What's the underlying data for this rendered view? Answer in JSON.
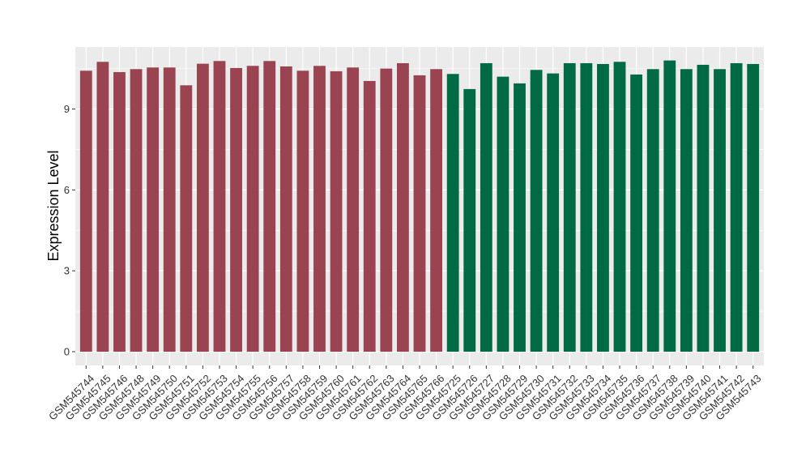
{
  "chart_data": {
    "type": "bar",
    "title": "",
    "xlabel": "",
    "ylabel": "Expression Level",
    "ylim": [
      0,
      11.3
    ],
    "yticks": [
      0,
      3,
      6,
      9
    ],
    "grid": true,
    "legend": "none",
    "panel_background": "#ebebeb",
    "gridline_color": "#ffffff",
    "categories": [
      "GSM545744",
      "GSM545745",
      "GSM545746",
      "GSM545748",
      "GSM545749",
      "GSM545750",
      "GSM545751",
      "GSM545752",
      "GSM545753",
      "GSM545754",
      "GSM545755",
      "GSM545756",
      "GSM545757",
      "GSM545758",
      "GSM545759",
      "GSM545760",
      "GSM545761",
      "GSM545762",
      "GSM545763",
      "GSM545764",
      "GSM545765",
      "GSM545766",
      "GSM545725",
      "GSM545726",
      "GSM545727",
      "GSM545728",
      "GSM545729",
      "GSM545730",
      "GSM545731",
      "GSM545732",
      "GSM545733",
      "GSM545734",
      "GSM545735",
      "GSM545736",
      "GSM545737",
      "GSM545738",
      "GSM545739",
      "GSM545740",
      "GSM545741",
      "GSM545742",
      "GSM545743"
    ],
    "values": [
      10.42,
      10.75,
      10.37,
      10.48,
      10.54,
      10.54,
      9.88,
      10.68,
      10.78,
      10.52,
      10.6,
      10.78,
      10.58,
      10.42,
      10.6,
      10.4,
      10.54,
      10.04,
      10.5,
      10.7,
      10.25,
      10.48,
      10.3,
      9.74,
      10.7,
      10.2,
      9.95,
      10.45,
      10.32,
      10.7,
      10.7,
      10.67,
      10.75,
      10.28,
      10.48,
      10.8,
      10.48,
      10.64,
      10.48,
      10.7,
      10.67
    ],
    "group_sizes": [
      22,
      19
    ],
    "group_colors": [
      "#9b4451",
      "#006a45"
    ]
  }
}
